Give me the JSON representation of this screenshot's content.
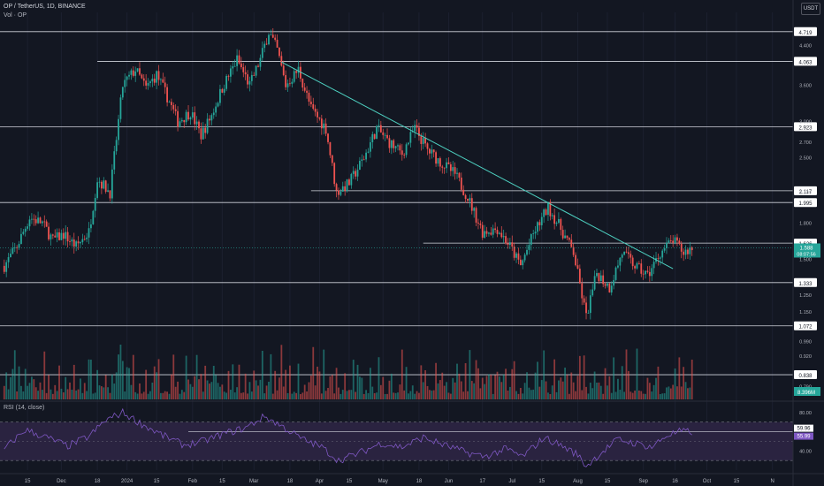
{
  "legend": {
    "symbol_line": "OP / TetherUS, 1D, BINANCE",
    "volume_line": "Vol · OP",
    "rsi_line": "RSI (14, close)"
  },
  "currency_badge": "USDT",
  "colors": {
    "up": "#26a69a",
    "down": "#ef5350",
    "trendline": "#4dd0c0",
    "level_line": "#d1d4dc",
    "rsi_line": "#7e57c2",
    "rsi_band": "#2a2340",
    "axis_text": "#b2b5be",
    "background": "#131722"
  },
  "chart_data": {
    "type": "candlestick",
    "symbol": "OP / TetherUS",
    "timeframe": "1D",
    "exchange": "BINANCE",
    "y_scale": "log",
    "ylim": [
      0.74,
      5.2
    ],
    "price_axis_ticks": [
      "4.400",
      "3.600",
      "3.000",
      "2.700",
      "2.500",
      "2.100",
      "1.800",
      "1.500",
      "1.250",
      "1.150",
      "0.990",
      "0.920",
      "0.790"
    ],
    "x_axis_ticks": [
      "15",
      "Dec",
      "18",
      "2024",
      "15",
      "Feb",
      "15",
      "Mar",
      "18",
      "Apr",
      "15",
      "May",
      "18",
      "Jun",
      "17",
      "Jul",
      "15",
      "Aug",
      "15",
      "Sep",
      "16",
      "Oct",
      "15",
      "N"
    ],
    "horizontal_levels": [
      {
        "label": "4.719",
        "price": 4.719
      },
      {
        "label": "4.063",
        "price": 4.063
      },
      {
        "label": "2.923",
        "price": 2.923
      },
      {
        "label": "2.117",
        "price": 2.117
      },
      {
        "label": "1.995",
        "price": 1.995
      },
      {
        "label": "1.626",
        "price": 1.626
      },
      {
        "label": "1.333",
        "price": 1.333
      },
      {
        "label": "1.072",
        "price": 1.072
      },
      {
        "label": "0.838",
        "price": 0.838
      }
    ],
    "current_price": {
      "label": "1.588",
      "countdown": "08:07:56",
      "price": 1.588
    },
    "volume_label": "8.396M",
    "trendline": {
      "from": {
        "date": "2024-03-14",
        "price": 4.05
      },
      "to": {
        "date": "2024-09-15",
        "price": 1.43
      }
    },
    "series_path": [
      [
        "2023-11-04",
        1.45
      ],
      [
        "2023-11-10",
        1.6
      ],
      [
        "2023-11-16",
        1.85
      ],
      [
        "2023-11-22",
        1.8
      ],
      [
        "2023-11-27",
        1.65
      ],
      [
        "2023-12-02",
        1.7
      ],
      [
        "2023-12-08",
        1.6
      ],
      [
        "2023-12-14",
        1.72
      ],
      [
        "2023-12-18",
        2.25
      ],
      [
        "2023-12-24",
        2.1
      ],
      [
        "2023-12-30",
        3.6
      ],
      [
        "2024-01-05",
        3.9
      ],
      [
        "2024-01-10",
        3.55
      ],
      [
        "2024-01-15",
        3.8
      ],
      [
        "2024-01-20",
        3.4
      ],
      [
        "2024-01-25",
        3.0
      ],
      [
        "2024-01-31",
        3.15
      ],
      [
        "2024-02-05",
        2.8
      ],
      [
        "2024-02-10",
        3.1
      ],
      [
        "2024-02-15",
        3.55
      ],
      [
        "2024-02-22",
        4.1
      ],
      [
        "2024-02-28",
        3.6
      ],
      [
        "2024-03-04",
        4.1
      ],
      [
        "2024-03-08",
        4.72
      ],
      [
        "2024-03-12",
        4.3
      ],
      [
        "2024-03-16",
        3.6
      ],
      [
        "2024-03-22",
        3.9
      ],
      [
        "2024-03-28",
        3.2
      ],
      [
        "2024-04-04",
        2.9
      ],
      [
        "2024-04-09",
        2.1
      ],
      [
        "2024-04-15",
        2.2
      ],
      [
        "2024-04-22",
        2.5
      ],
      [
        "2024-04-28",
        2.9
      ],
      [
        "2024-05-04",
        2.7
      ],
      [
        "2024-05-10",
        2.55
      ],
      [
        "2024-05-16",
        2.9
      ],
      [
        "2024-05-22",
        2.6
      ],
      [
        "2024-05-28",
        2.45
      ],
      [
        "2024-06-04",
        2.3
      ],
      [
        "2024-06-10",
        2.05
      ],
      [
        "2024-06-17",
        1.72
      ],
      [
        "2024-06-24",
        1.75
      ],
      [
        "2024-06-30",
        1.6
      ],
      [
        "2024-07-05",
        1.45
      ],
      [
        "2024-07-11",
        1.7
      ],
      [
        "2024-07-18",
        1.95
      ],
      [
        "2024-07-24",
        1.75
      ],
      [
        "2024-07-30",
        1.55
      ],
      [
        "2024-08-05",
        1.12
      ],
      [
        "2024-08-10",
        1.4
      ],
      [
        "2024-08-16",
        1.3
      ],
      [
        "2024-08-22",
        1.55
      ],
      [
        "2024-08-28",
        1.45
      ],
      [
        "2024-09-03",
        1.38
      ],
      [
        "2024-09-09",
        1.55
      ],
      [
        "2024-09-15",
        1.65
      ],
      [
        "2024-09-20",
        1.55
      ],
      [
        "2024-09-24",
        1.588
      ]
    ],
    "rsi": {
      "name": "RSI (14, close)",
      "axis_ticks": [
        "80.00",
        "40.00"
      ],
      "upper_band": 70,
      "lower_band": 30,
      "value_label": "59.96",
      "ma_label": "55.99",
      "value": 59.96,
      "ma_value": 55.99,
      "path": [
        [
          "2023-11-04",
          42
        ],
        [
          "2023-11-14",
          62
        ],
        [
          "2023-11-24",
          54
        ],
        [
          "2023-12-04",
          45
        ],
        [
          "2023-12-14",
          55
        ],
        [
          "2023-12-22",
          72
        ],
        [
          "2023-12-30",
          80
        ],
        [
          "2024-01-08",
          68
        ],
        [
          "2024-01-18",
          56
        ],
        [
          "2024-01-28",
          46
        ],
        [
          "2024-02-06",
          50
        ],
        [
          "2024-02-16",
          58
        ],
        [
          "2024-02-26",
          64
        ],
        [
          "2024-03-06",
          76
        ],
        [
          "2024-03-14",
          66
        ],
        [
          "2024-03-24",
          52
        ],
        [
          "2024-04-02",
          44
        ],
        [
          "2024-04-10",
          30
        ],
        [
          "2024-04-20",
          38
        ],
        [
          "2024-04-30",
          48
        ],
        [
          "2024-05-10",
          44
        ],
        [
          "2024-05-20",
          54
        ],
        [
          "2024-05-30",
          46
        ],
        [
          "2024-06-10",
          38
        ],
        [
          "2024-06-18",
          34
        ],
        [
          "2024-06-28",
          42
        ],
        [
          "2024-07-06",
          34
        ],
        [
          "2024-07-16",
          54
        ],
        [
          "2024-07-24",
          46
        ],
        [
          "2024-08-01",
          36
        ],
        [
          "2024-08-05",
          24
        ],
        [
          "2024-08-12",
          38
        ],
        [
          "2024-08-20",
          52
        ],
        [
          "2024-08-28",
          48
        ],
        [
          "2024-09-05",
          44
        ],
        [
          "2024-09-12",
          56
        ],
        [
          "2024-09-18",
          60
        ],
        [
          "2024-09-24",
          59.96
        ]
      ]
    }
  }
}
